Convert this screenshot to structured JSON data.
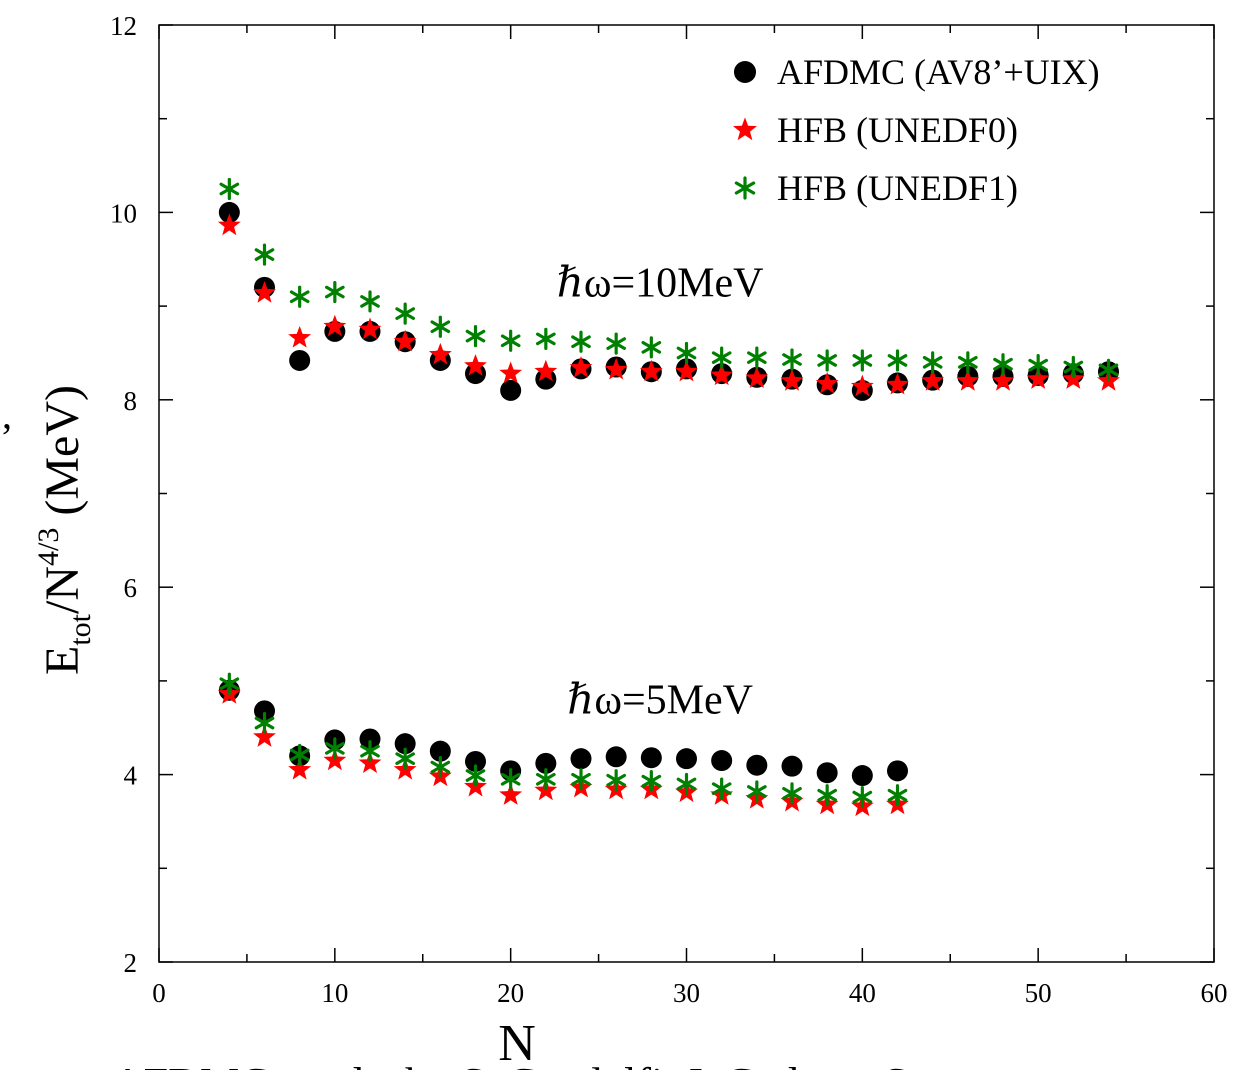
{
  "chart_data": {
    "type": "scatter",
    "xlabel": "N",
    "ylabel": {
      "base": "E",
      "sub": "tot",
      "mid": "/N",
      "sup": "4/3",
      "unit": " (MeV)"
    },
    "xlim": [
      0,
      60
    ],
    "ylim": [
      2,
      12
    ],
    "x_ticks": [
      0,
      10,
      20,
      30,
      40,
      50,
      60
    ],
    "y_ticks": [
      2,
      4,
      6,
      8,
      10,
      12
    ],
    "grid": false,
    "legend_position": "top-right",
    "annotations": [
      {
        "text": "ℏω=10MeV",
        "x": 28.5,
        "y": 9.1
      },
      {
        "text": "ℏω=5MeV",
        "x": 28.5,
        "y": 4.65
      }
    ],
    "caption": "AFDMC results by S. Gandolfi, J. Carlson, Steve",
    "left_fragment": ",",
    "series": [
      {
        "name": "AFDMC (AV8’+UIX)",
        "marker": "circle",
        "color": "#000000",
        "groups": [
          {
            "x": [
              4,
              6,
              8,
              10,
              12,
              14,
              16,
              18,
              20,
              22,
              24,
              26,
              28,
              30,
              32,
              34,
              36,
              38,
              40,
              42,
              44,
              46,
              48,
              50,
              52,
              54
            ],
            "y": [
              10.0,
              9.2,
              8.42,
              8.73,
              8.73,
              8.62,
              8.42,
              8.28,
              8.1,
              8.22,
              8.33,
              8.35,
              8.3,
              8.33,
              8.28,
              8.24,
              8.22,
              8.16,
              8.1,
              8.18,
              8.21,
              8.25,
              8.25,
              8.26,
              8.28,
              8.3
            ]
          },
          {
            "x": [
              4,
              6,
              8,
              10,
              12,
              14,
              16,
              18,
              20,
              22,
              24,
              26,
              28,
              30,
              32,
              34,
              36,
              38,
              40,
              42
            ],
            "y": [
              4.9,
              4.68,
              4.2,
              4.37,
              4.38,
              4.33,
              4.25,
              4.14,
              4.04,
              4.12,
              4.17,
              4.19,
              4.18,
              4.17,
              4.15,
              4.1,
              4.09,
              4.02,
              3.99,
              4.04
            ]
          }
        ]
      },
      {
        "name": "HFB (UNEDF0)",
        "marker": "star",
        "color": "#ff0000",
        "groups": [
          {
            "x": [
              4,
              6,
              8,
              10,
              12,
              14,
              16,
              18,
              20,
              22,
              24,
              26,
              28,
              30,
              32,
              34,
              36,
              38,
              40,
              42,
              44,
              46,
              48,
              50,
              52,
              54
            ],
            "y": [
              9.86,
              9.14,
              8.66,
              8.78,
              8.75,
              8.62,
              8.48,
              8.36,
              8.28,
              8.3,
              8.34,
              8.32,
              8.3,
              8.3,
              8.26,
              8.23,
              8.2,
              8.17,
              8.14,
              8.16,
              8.2,
              8.2,
              8.2,
              8.22,
              8.22,
              8.2
            ]
          },
          {
            "x": [
              4,
              6,
              8,
              10,
              12,
              14,
              16,
              18,
              20,
              22,
              24,
              26,
              28,
              30,
              32,
              34,
              36,
              38,
              40,
              42
            ],
            "y": [
              4.86,
              4.4,
              4.05,
              4.15,
              4.12,
              4.05,
              3.98,
              3.87,
              3.78,
              3.83,
              3.86,
              3.84,
              3.84,
              3.81,
              3.78,
              3.74,
              3.71,
              3.68,
              3.66,
              3.68
            ]
          }
        ]
      },
      {
        "name": "HFB (UNEDF1)",
        "marker": "asterisk",
        "color": "#008000",
        "groups": [
          {
            "x": [
              4,
              6,
              8,
              10,
              12,
              14,
              16,
              18,
              20,
              22,
              24,
              26,
              28,
              30,
              32,
              34,
              36,
              38,
              40,
              42,
              44,
              46,
              48,
              50,
              52,
              54
            ],
            "y": [
              10.25,
              9.55,
              9.1,
              9.15,
              9.05,
              8.92,
              8.78,
              8.68,
              8.63,
              8.65,
              8.62,
              8.6,
              8.56,
              8.5,
              8.45,
              8.45,
              8.43,
              8.42,
              8.42,
              8.42,
              8.4,
              8.4,
              8.38,
              8.37,
              8.35,
              8.32
            ]
          },
          {
            "x": [
              4,
              6,
              8,
              10,
              12,
              14,
              16,
              18,
              20,
              22,
              24,
              26,
              28,
              30,
              32,
              34,
              36,
              38,
              40,
              42
            ],
            "y": [
              4.97,
              4.55,
              4.21,
              4.28,
              4.25,
              4.17,
              4.08,
              3.99,
              3.95,
              3.95,
              3.95,
              3.94,
              3.93,
              3.9,
              3.85,
              3.82,
              3.8,
              3.78,
              3.76,
              3.78
            ]
          }
        ]
      }
    ]
  }
}
